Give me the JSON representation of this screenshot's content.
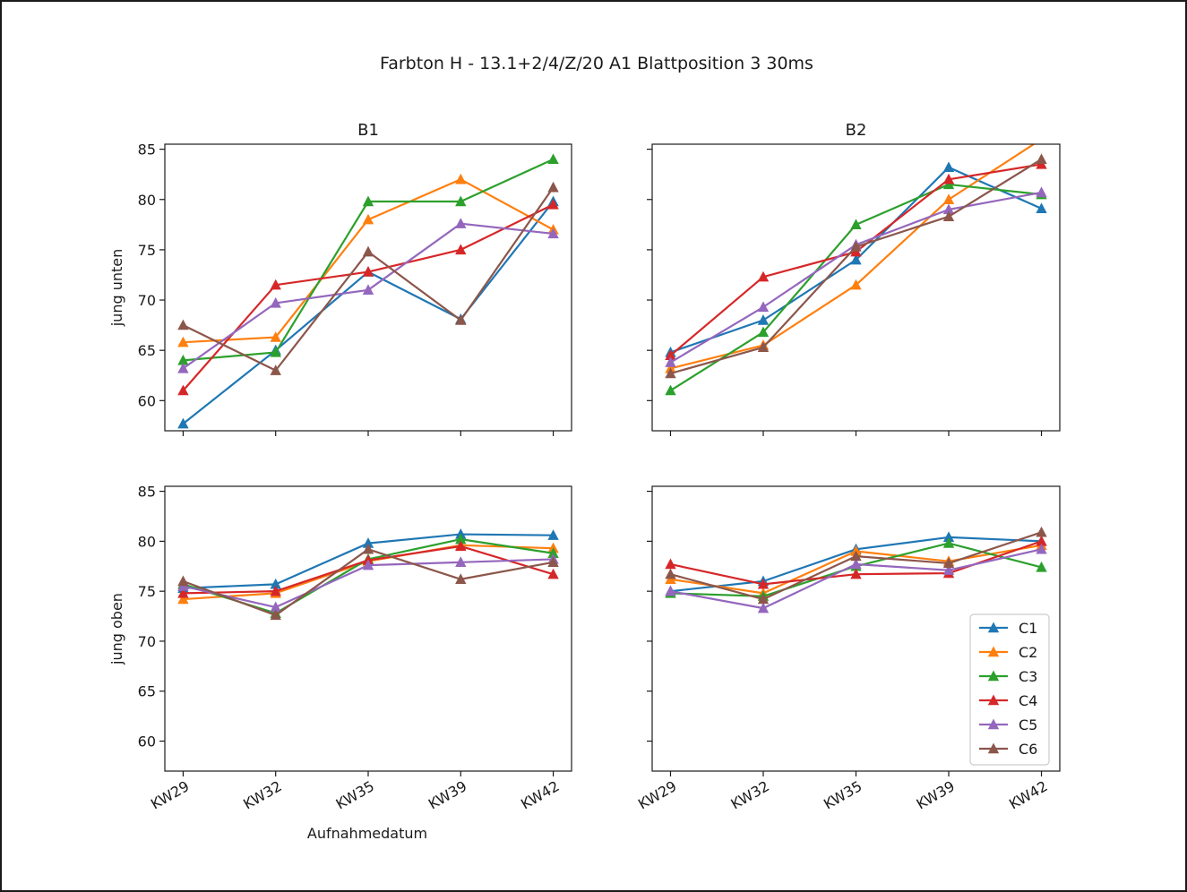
{
  "figure": {
    "title": "Farbton H - 13.1+2/4/Z/20 A1 Blattposition 3 30ms",
    "xlabel": "Aufnahmedatum"
  },
  "colors": {
    "C1": "#1f77b4",
    "C2": "#ff7f0e",
    "C3": "#2ca02c",
    "C4": "#d62728",
    "C5": "#9467bd",
    "C6": "#8c564b"
  },
  "legend": {
    "placement": "lower-right of bottom-right panel",
    "entries": [
      "C1",
      "C2",
      "C3",
      "C4",
      "C5",
      "C6"
    ]
  },
  "chart_data": [
    {
      "type": "line",
      "panel": "top-left",
      "title": "B1",
      "xlabel": "",
      "ylabel": "jung unten",
      "categories": [
        "KW29",
        "KW32",
        "KW35",
        "KW39",
        "KW42"
      ],
      "yticks": [
        60,
        65,
        70,
        75,
        80,
        85
      ],
      "ylim": [
        57,
        85.5
      ],
      "marker": "triangle",
      "series": [
        {
          "name": "C1",
          "values": [
            57.7,
            65.0,
            72.8,
            68.1,
            79.8
          ]
        },
        {
          "name": "C2",
          "values": [
            65.8,
            66.3,
            78.0,
            82.0,
            77.0
          ]
        },
        {
          "name": "C3",
          "values": [
            64.0,
            64.8,
            79.8,
            79.8,
            84.0
          ]
        },
        {
          "name": "C4",
          "values": [
            61.0,
            71.5,
            72.8,
            75.0,
            79.5
          ]
        },
        {
          "name": "C5",
          "values": [
            63.2,
            69.7,
            71.0,
            77.6,
            76.6
          ]
        },
        {
          "name": "C6",
          "values": [
            67.5,
            63.0,
            74.8,
            68.0,
            81.2
          ]
        }
      ]
    },
    {
      "type": "line",
      "panel": "top-right",
      "title": "B2",
      "xlabel": "",
      "ylabel": "",
      "categories": [
        "KW29",
        "KW32",
        "KW35",
        "KW39",
        "KW42"
      ],
      "yticks": [
        60,
        65,
        70,
        75,
        80,
        85
      ],
      "ylim": [
        57,
        85.5
      ],
      "marker": "triangle",
      "series": [
        {
          "name": "C1",
          "values": [
            64.8,
            68.0,
            74.0,
            83.2,
            79.1
          ]
        },
        {
          "name": "C2",
          "values": [
            63.2,
            65.5,
            71.5,
            80.0,
            86.0
          ]
        },
        {
          "name": "C3",
          "values": [
            61.0,
            66.8,
            77.5,
            81.5,
            80.5
          ]
        },
        {
          "name": "C4",
          "values": [
            64.5,
            72.3,
            74.8,
            82.0,
            83.5
          ]
        },
        {
          "name": "C5",
          "values": [
            63.8,
            69.3,
            75.5,
            79.0,
            80.7
          ]
        },
        {
          "name": "C6",
          "values": [
            62.7,
            65.3,
            75.3,
            78.3,
            84.0
          ]
        }
      ]
    },
    {
      "type": "line",
      "panel": "bottom-left",
      "title": "",
      "xlabel": "Aufnahmedatum",
      "ylabel": "jung oben",
      "categories": [
        "KW29",
        "KW32",
        "KW35",
        "KW39",
        "KW42"
      ],
      "yticks": [
        60,
        65,
        70,
        75,
        80,
        85
      ],
      "ylim": [
        57,
        85.5
      ],
      "marker": "triangle",
      "series": [
        {
          "name": "C1",
          "values": [
            75.3,
            75.7,
            79.8,
            80.7,
            80.6
          ]
        },
        {
          "name": "C2",
          "values": [
            74.2,
            74.8,
            78.0,
            79.6,
            79.3
          ]
        },
        {
          "name": "C3",
          "values": [
            75.7,
            72.8,
            78.2,
            80.2,
            78.8
          ]
        },
        {
          "name": "C4",
          "values": [
            74.8,
            75.0,
            78.1,
            79.5,
            76.7
          ]
        },
        {
          "name": "C5",
          "values": [
            75.5,
            73.4,
            77.6,
            77.9,
            78.2
          ]
        },
        {
          "name": "C6",
          "values": [
            76.0,
            72.6,
            79.2,
            76.2,
            77.9
          ]
        }
      ]
    },
    {
      "type": "line",
      "panel": "bottom-right",
      "title": "",
      "xlabel": "",
      "ylabel": "",
      "categories": [
        "KW29",
        "KW32",
        "KW35",
        "KW39",
        "KW42"
      ],
      "yticks": [
        60,
        65,
        70,
        75,
        80,
        85
      ],
      "ylim": [
        57,
        85.5
      ],
      "marker": "triangle",
      "series": [
        {
          "name": "C1",
          "values": [
            75.0,
            76.0,
            79.2,
            80.4,
            80.0
          ]
        },
        {
          "name": "C2",
          "values": [
            76.2,
            74.8,
            79.0,
            78.0,
            79.6
          ]
        },
        {
          "name": "C3",
          "values": [
            74.8,
            74.5,
            77.5,
            79.8,
            77.4
          ]
        },
        {
          "name": "C4",
          "values": [
            77.7,
            75.7,
            76.7,
            76.8,
            80.0
          ]
        },
        {
          "name": "C5",
          "values": [
            75.0,
            73.3,
            77.7,
            77.1,
            79.2
          ]
        },
        {
          "name": "C6",
          "values": [
            76.7,
            74.2,
            78.5,
            77.8,
            80.9
          ]
        }
      ]
    }
  ]
}
